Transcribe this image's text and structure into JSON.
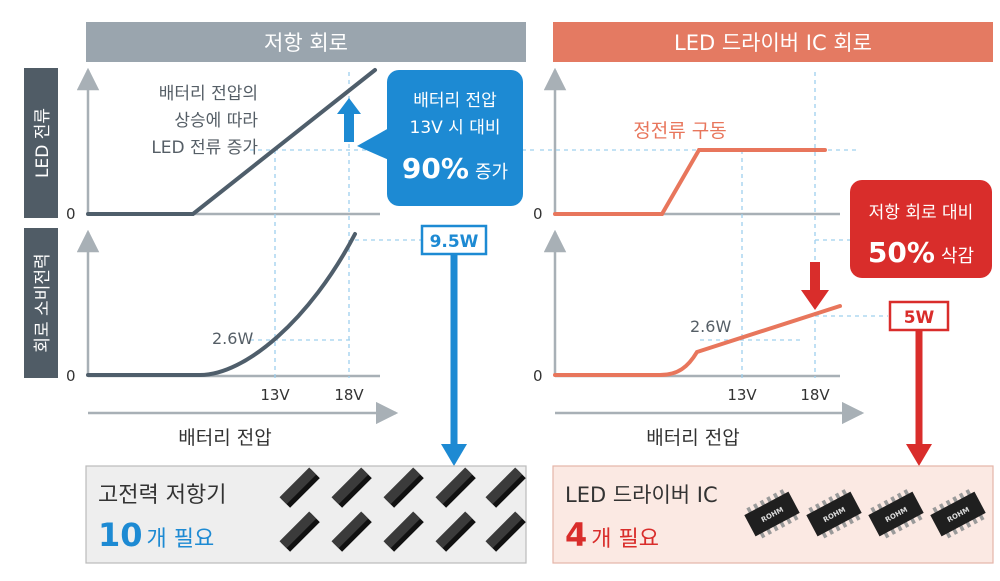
{
  "left_panel": {
    "header": "저항 회로",
    "y_label_top": "LED 전류",
    "y_label_bottom": "회로 소비전력",
    "zero_top": "0",
    "zero_bottom": "0",
    "note_lines": [
      "배터리 전압의",
      "상승에 따라",
      "LED 전류 증가"
    ],
    "callout": {
      "line1": "배터리 전압",
      "line2": "13V 시 대비",
      "big": "90%",
      "suffix": "증가"
    },
    "power_label": "2.6W",
    "ticks": [
      "13V",
      "18V"
    ],
    "x_label": "배터리 전압",
    "power_badge": "9.5W",
    "result": {
      "line1": "고전력 저항기",
      "count": "10",
      "suffix": "개 필요"
    }
  },
  "right_panel": {
    "header": "LED 드라이버 IC 회로",
    "zero_top": "0",
    "zero_bottom": "0",
    "const_label": "정전류 구동",
    "callout": {
      "line1": "저항 회로 대비",
      "big": "50%",
      "suffix": "삭감"
    },
    "power_label": "2.6W",
    "ticks": [
      "13V",
      "18V"
    ],
    "x_label": "배터리 전압",
    "power_badge": "5W",
    "result": {
      "line1": "LED 드라이버 IC",
      "count": "4",
      "suffix": "개 필요"
    },
    "chip_logo": "ROHM"
  },
  "colors": {
    "left_header": "#9aa5ae",
    "right_header": "#e47a62",
    "left_curve": "#4f5e6b",
    "right_curve": "#e8765c",
    "blue": "#1d8ad3",
    "red": "#d92d2b",
    "dashed": "#9fd0ee",
    "axis": "#a8b0b6",
    "ylabel_bg": "#505c66",
    "left_result_bg": "#eeeeee",
    "right_result_bg": "#fbe9e3"
  }
}
